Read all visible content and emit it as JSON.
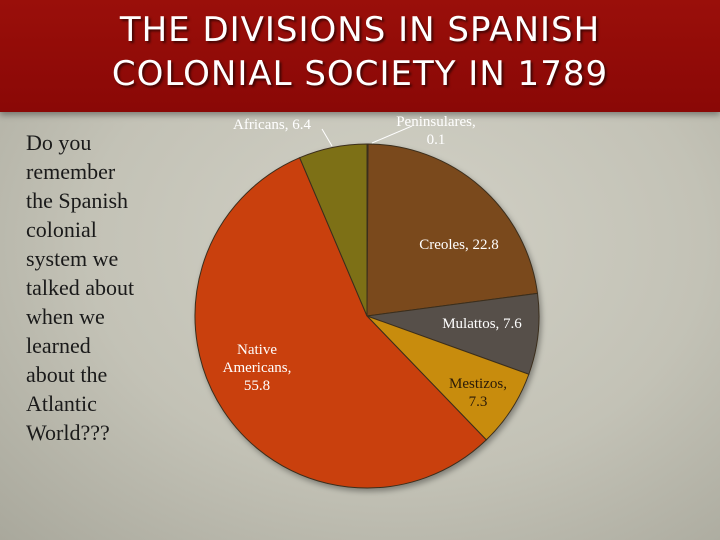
{
  "slide": {
    "title_lines": [
      "The Divisions in Spanish",
      "Colonial Society in 1789"
    ],
    "body_lines": [
      "Do you",
      "remember",
      "the Spanish",
      "colonial",
      "system we",
      "talked about",
      "when we",
      "learned",
      "about the",
      "Atlantic",
      "World???"
    ]
  },
  "chart_data": {
    "type": "pie",
    "slices": [
      {
        "name": "Peninsulares",
        "value": 0.1,
        "color": "#8a5a2a",
        "label_lines": [
          "Peninsulares,",
          "0.1"
        ],
        "label_color": "#ffffff"
      },
      {
        "name": "Creoles",
        "value": 22.8,
        "color": "#7a4a1c",
        "label_lines": [
          "Creoles, 22.8"
        ],
        "label_color": "#ffffff"
      },
      {
        "name": "Mulattos",
        "value": 7.6,
        "color": "#575048",
        "label_lines": [
          "Mulattos, 7.6"
        ],
        "label_color": "#ffffff"
      },
      {
        "name": "Mestizos",
        "value": 7.3,
        "color": "#c88c0a",
        "label_lines": [
          "Mestizos,",
          "7.3"
        ],
        "label_color": "#2a1a08"
      },
      {
        "name": "Native Americans",
        "value": 55.8,
        "color": "#c9400c",
        "label_lines": [
          "Native",
          "Americans,",
          "55.8"
        ],
        "label_color": "#ffffff"
      },
      {
        "name": "Africans",
        "value": 6.4,
        "color": "#7d6f12",
        "label_lines": [
          "Africans, 6.4"
        ],
        "label_color": "#ffffff"
      }
    ]
  }
}
